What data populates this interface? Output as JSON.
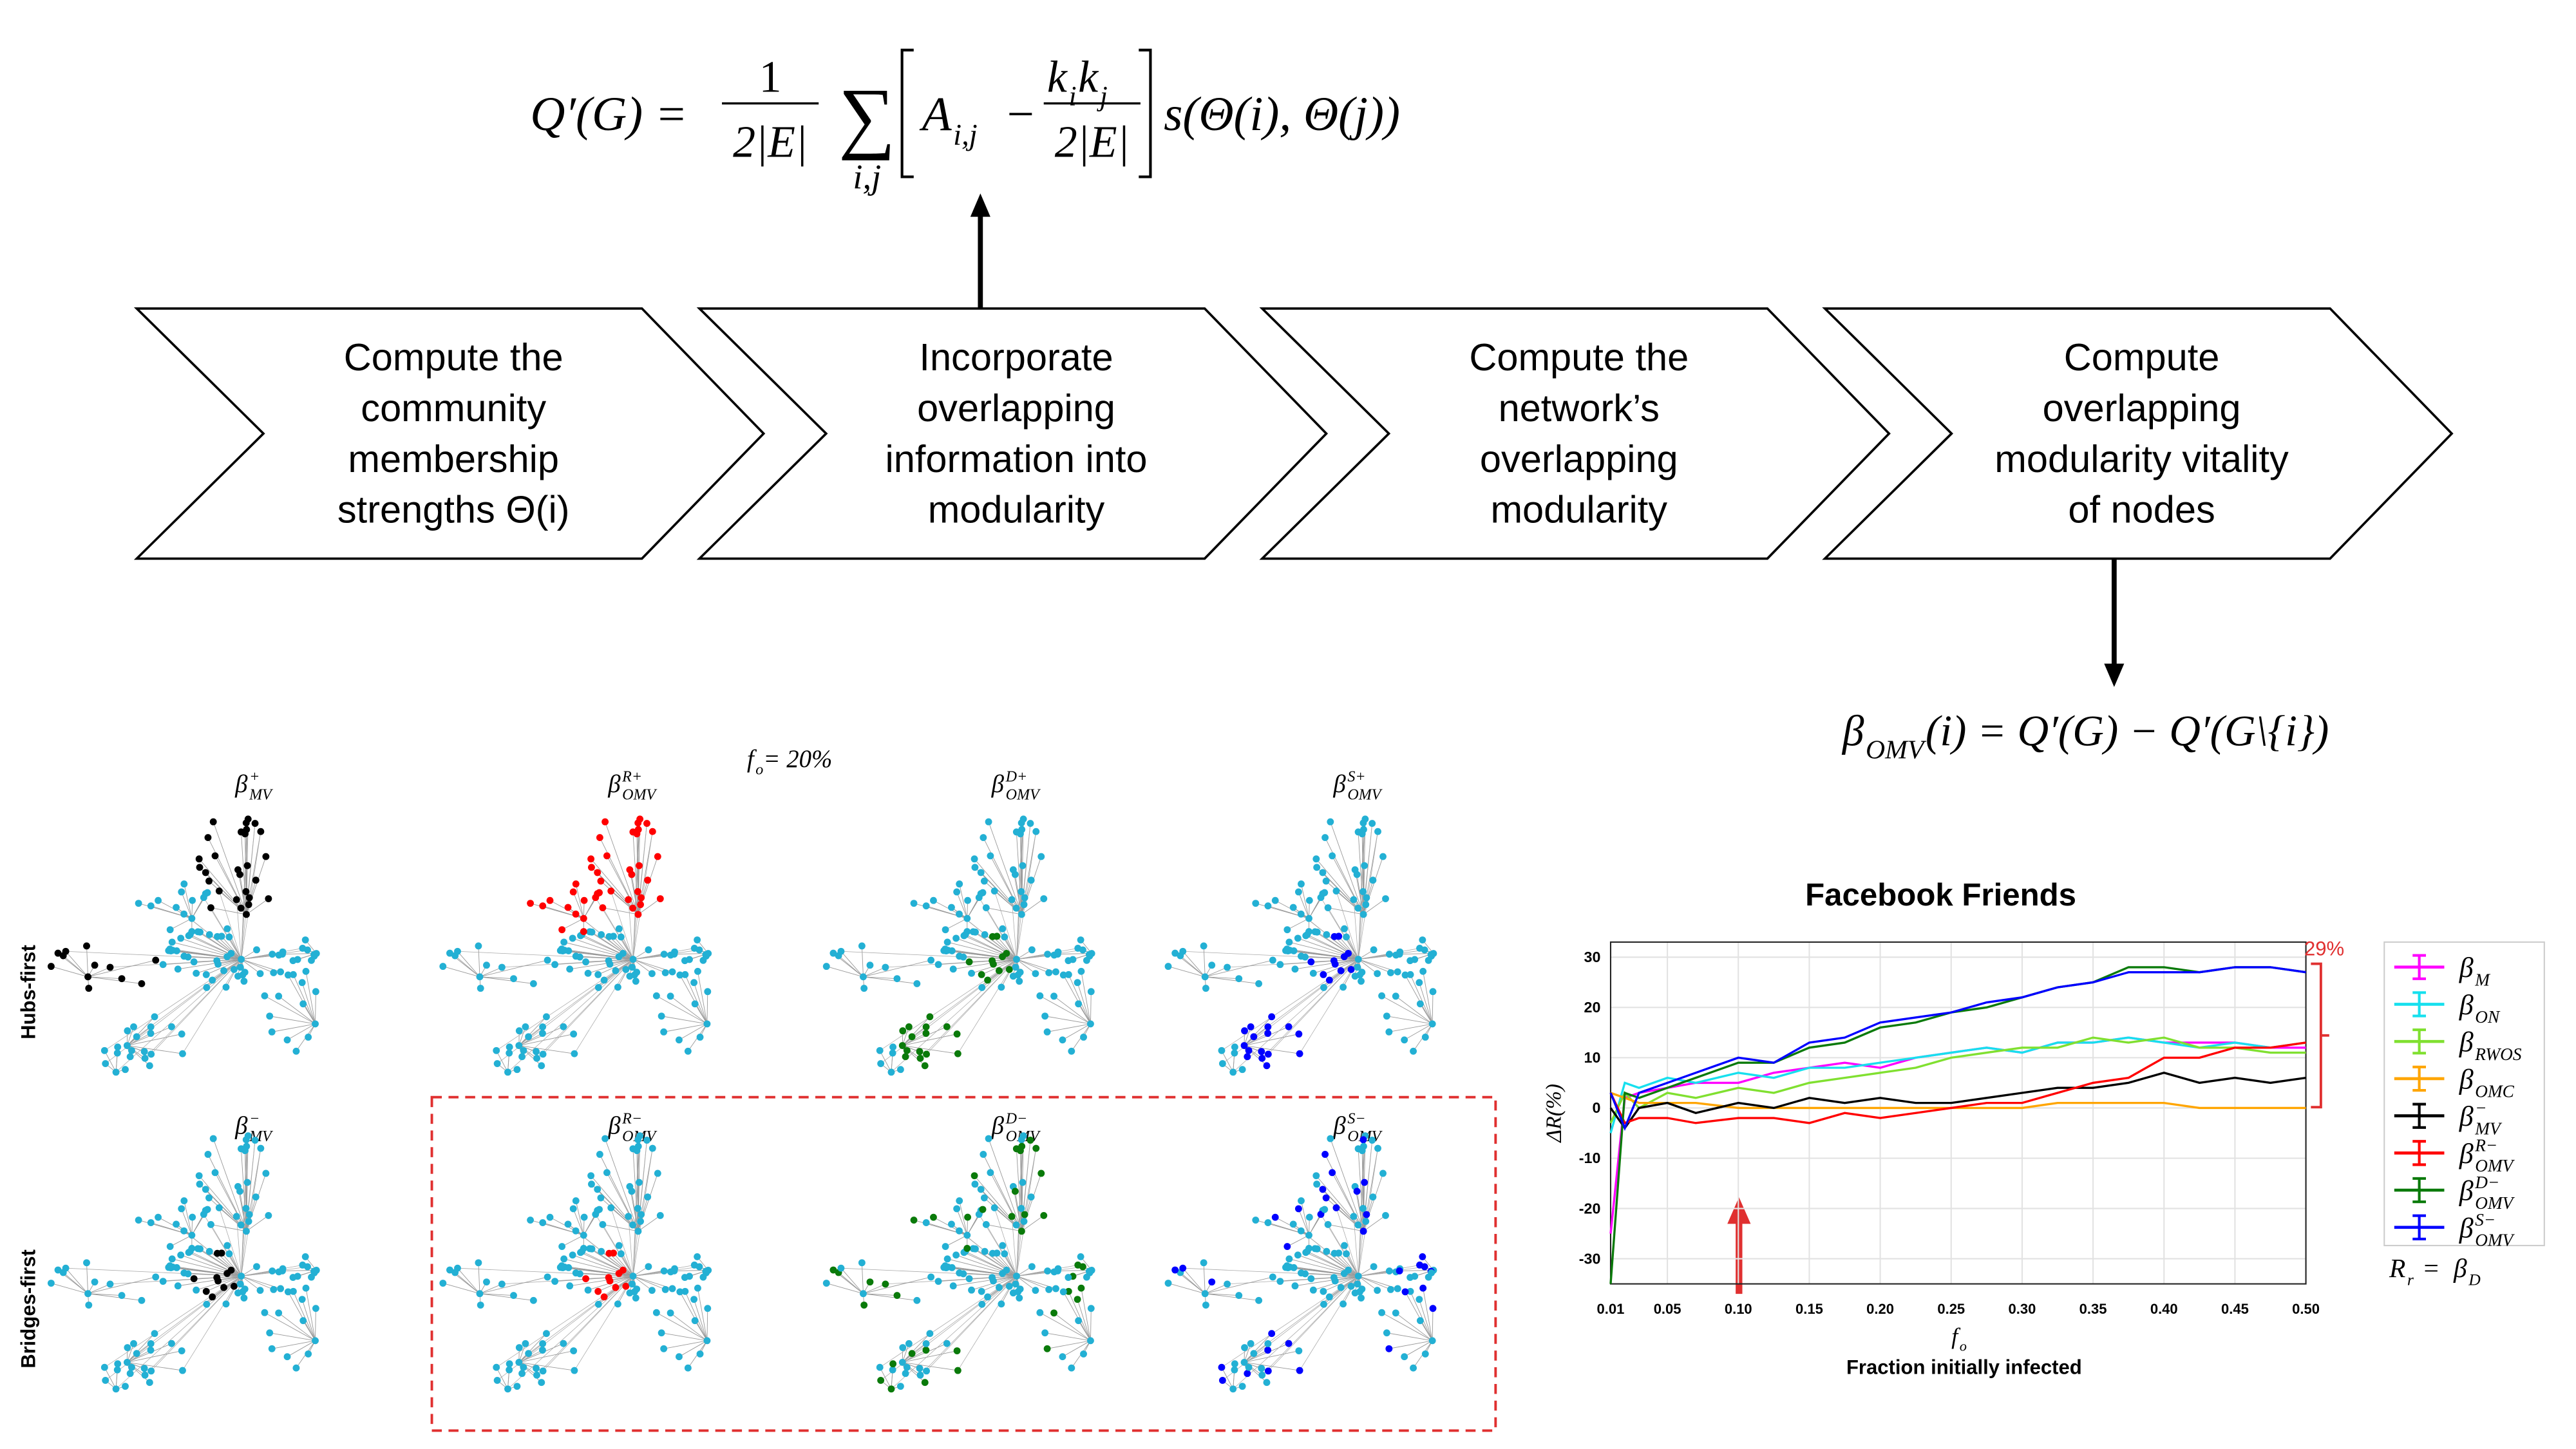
{
  "formula": {
    "lhs": "Q′(G) =",
    "one": "1",
    "den1": "2|E|",
    "sum": "∑",
    "sum_index": "i,j",
    "a": {
      "base": "A",
      "sub": "i,j"
    },
    "minus": "−",
    "k_i": {
      "base": "k",
      "sub": "i"
    },
    "k_j": {
      "base": "k",
      "sub": "j"
    },
    "den2": "2|E|",
    "s": "s(Θ(i), Θ(j))"
  },
  "steps": [
    [
      "Compute the",
      "community",
      "membership",
      "strengths Θ(i)"
    ],
    [
      "Incorporate",
      "overlapping",
      "information into",
      "modularity"
    ],
    [
      "Compute the",
      "network’s",
      "overlapping",
      "modularity"
    ],
    [
      "Compute",
      "overlapping",
      "modularity vitality",
      "of nodes"
    ]
  ],
  "vitality": {
    "beta": {
      "base": "β",
      "sub": "OMV"
    },
    "rest": "(i) = Q′(G) − Q′(G\\{i})"
  },
  "panels": {
    "fraction": {
      "base": "f",
      "sub": "o",
      "rest": " = 20%"
    },
    "row_labels": [
      "Hubs-first",
      "Bridges-first"
    ],
    "items": [
      {
        "base": "β",
        "sup": "+",
        "sub": "MV",
        "color": "#000000"
      },
      {
        "base": "β",
        "sup": "R+",
        "sub": "OMV",
        "color": "#ff0000"
      },
      {
        "base": "β",
        "sup": "D+",
        "sub": "OMV",
        "color": "#0a7a0a"
      },
      {
        "base": "β",
        "sup": "S+",
        "sub": "OMV",
        "color": "#0000ff"
      },
      {
        "base": "β",
        "sup": "−",
        "sub": "MV",
        "color": "#000000"
      },
      {
        "base": "β",
        "sup": "R−",
        "sub": "OMV",
        "color": "#ff0000"
      },
      {
        "base": "β",
        "sup": "D−",
        "sub": "OMV",
        "color": "#0a7a0a"
      },
      {
        "base": "β",
        "sup": "S−",
        "sub": "OMV",
        "color": "#0000ff"
      }
    ]
  },
  "chart_data": {
    "type": "line",
    "title": "Facebook Friends",
    "ylabel": "ΔR(%)",
    "xlabel": {
      "base": "f",
      "sub": "o"
    },
    "xlabel2": "Fraction initially infected",
    "annotation": "29%",
    "footnote": {
      "lhs": {
        "base": "R",
        "sub": "r"
      },
      "eq": "=",
      "rhs": {
        "base": "β",
        "sub": "D"
      }
    },
    "grid": true,
    "xlim": [
      0.01,
      0.5
    ],
    "ylim": [
      -35,
      33
    ],
    "xticks": [
      0.01,
      0.05,
      {
        "value": 0.1,
        "label": "0.10"
      },
      0.15,
      {
        "value": 0.2,
        "label": "0.20"
      },
      0.25,
      {
        "value": 0.3,
        "label": "0.30"
      },
      0.35,
      {
        "value": 0.4,
        "label": "0.40"
      },
      0.45,
      {
        "value": 0.5,
        "label": "0.50"
      }
    ],
    "yticks": [
      -30,
      -20,
      -10,
      0,
      10,
      20,
      30
    ],
    "x": [
      0.01,
      0.02,
      0.03,
      0.05,
      0.07,
      0.1,
      0.125,
      0.15,
      0.175,
      0.2,
      0.225,
      0.25,
      0.275,
      0.3,
      0.325,
      0.35,
      0.375,
      0.4,
      0.425,
      0.45,
      0.475,
      0.5
    ],
    "series": [
      {
        "name": {
          "base": "β",
          "sub": "M"
        },
        "color": "#ff00ff",
        "values": [
          -25,
          2,
          3,
          4,
          5,
          5,
          7,
          8,
          9,
          8,
          10,
          11,
          12,
          11,
          13,
          13,
          14,
          13,
          13,
          13,
          12,
          12
        ]
      },
      {
        "name": {
          "base": "β",
          "sub": "ON"
        },
        "color": "#16e0ee",
        "values": [
          -5,
          5,
          4,
          6,
          5,
          7,
          6,
          8,
          8,
          9,
          10,
          11,
          12,
          11,
          13,
          13,
          14,
          13,
          12,
          13,
          12,
          13
        ]
      },
      {
        "name": {
          "base": "β",
          "sub": "RWOS"
        },
        "color": "#80e030",
        "values": [
          -3,
          3,
          0,
          3,
          2,
          4,
          3,
          5,
          6,
          7,
          8,
          10,
          11,
          12,
          12,
          14,
          13,
          14,
          12,
          12,
          11,
          11
        ]
      },
      {
        "name": {
          "base": "β",
          "sub": "OMC"
        },
        "color": "#ffa500",
        "values": [
          3,
          2,
          1,
          1,
          1,
          0,
          0,
          0,
          0,
          0,
          0,
          0,
          0,
          0,
          1,
          1,
          1,
          1,
          0,
          0,
          0,
          0
        ]
      },
      {
        "name": {
          "base": "β",
          "sup": "−",
          "sub": "MV"
        },
        "color": "#000000",
        "values": [
          0,
          -4,
          0,
          1,
          -1,
          1,
          0,
          2,
          1,
          2,
          1,
          1,
          2,
          3,
          4,
          4,
          5,
          7,
          5,
          6,
          5,
          6
        ]
      },
      {
        "name": {
          "base": "β",
          "sup": "R−",
          "sub": "OMV"
        },
        "color": "#ff0000",
        "values": [
          3,
          -3,
          -2,
          -2,
          -3,
          -2,
          -2,
          -3,
          -1,
          -2,
          -1,
          0,
          1,
          1,
          3,
          5,
          6,
          10,
          10,
          12,
          12,
          13
        ]
      },
      {
        "name": {
          "base": "β",
          "sup": "D−",
          "sub": "OMV"
        },
        "color": "#0a7a0a",
        "values": [
          -35,
          3,
          2,
          4,
          6,
          9,
          9,
          12,
          13,
          16,
          17,
          19,
          20,
          22,
          24,
          25,
          28,
          28,
          27,
          28,
          28,
          27
        ]
      },
      {
        "name": {
          "base": "β",
          "sup": "S−",
          "sub": "OMV"
        },
        "color": "#0000ff",
        "values": [
          3,
          -4,
          3,
          5,
          7,
          10,
          9,
          13,
          14,
          17,
          18,
          19,
          21,
          22,
          24,
          25,
          27,
          27,
          27,
          28,
          28,
          27
        ]
      }
    ]
  }
}
